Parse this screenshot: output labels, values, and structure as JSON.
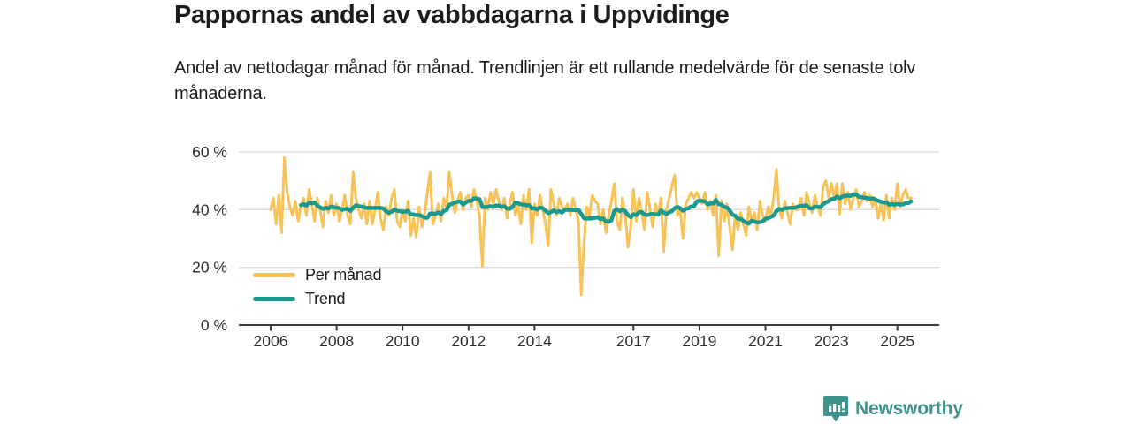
{
  "footer": {
    "brand": "Newsworthy",
    "brand_color": "#3E948C"
  },
  "chart_data": {
    "type": "line",
    "title": "Pappornas andel av vabbdagarna i Uppvidinge",
    "subtitle": "Andel av nettodagar månad för månad. Trendlinjen är ett rullande medelvärde för de senaste tolv månaderna.",
    "x_unit": "month",
    "x_start": "2006-01",
    "x_end": "2025-06",
    "y_unit": "%",
    "ylim": [
      0,
      63
    ],
    "grid": true,
    "grid_color": "#dcdcdc",
    "axis_color": "#3a3a3a",
    "label_color": "#2e2e2e",
    "legend_position": "inside-bottom-left",
    "yticks": [
      {
        "value": 0,
        "label": "0 %"
      },
      {
        "value": 20,
        "label": "20 %"
      },
      {
        "value": 40,
        "label": "40 %"
      },
      {
        "value": 60,
        "label": "60 %"
      }
    ],
    "xticks": [
      {
        "year": 2006,
        "label": "2006"
      },
      {
        "year": 2008,
        "label": "2008"
      },
      {
        "year": 2010,
        "label": "2010"
      },
      {
        "year": 2012,
        "label": "2012"
      },
      {
        "year": 2014,
        "label": "2014"
      },
      {
        "year": 2017,
        "label": "2017"
      },
      {
        "year": 2019,
        "label": "2019"
      },
      {
        "year": 2021,
        "label": "2021"
      },
      {
        "year": 2023,
        "label": "2023"
      },
      {
        "year": 2025,
        "label": "2025"
      }
    ],
    "series": [
      {
        "name": "Per månad",
        "color": "#F9C256",
        "values": [
          40,
          44,
          35,
          45,
          32,
          58,
          46,
          41,
          38,
          43,
          36,
          41,
          44,
          38,
          47,
          42,
          36,
          44,
          40,
          34,
          43,
          39,
          45,
          38,
          42,
          36,
          40,
          45,
          38,
          35,
          53,
          44,
          40,
          37,
          42,
          35,
          43,
          35,
          40,
          46,
          37,
          33,
          41,
          38,
          44,
          47,
          36,
          34,
          40,
          36,
          43,
          31,
          37,
          30.5,
          41,
          34,
          38,
          46,
          53,
          35,
          38,
          42,
          36,
          44,
          40,
          53,
          45,
          39,
          43,
          46,
          40,
          44,
          45,
          41,
          47,
          43,
          38,
          20.5,
          44,
          40,
          46,
          42,
          47,
          43,
          40,
          44,
          37,
          42,
          46,
          38,
          42,
          35,
          45,
          40,
          47,
          28.5,
          42,
          38,
          45,
          40,
          35,
          27.5,
          47,
          42,
          38,
          44,
          41,
          40,
          42,
          38,
          44,
          40,
          36,
          10.5,
          28.5,
          41,
          38,
          45,
          43,
          42,
          35,
          40,
          32,
          38,
          43,
          49,
          36,
          33,
          44,
          38,
          27,
          34,
          47,
          36,
          44,
          39,
          33,
          46,
          40,
          34,
          42,
          38,
          44,
          25.5,
          40,
          44,
          48,
          52,
          38,
          40,
          30,
          42,
          44,
          46,
          44,
          46,
          44,
          42,
          46,
          40,
          43,
          38,
          45,
          24,
          43,
          36,
          42,
          34,
          26,
          38,
          33,
          39,
          35,
          31,
          41,
          36,
          39,
          33,
          43,
          38,
          36,
          41,
          38,
          44,
          54,
          40,
          37,
          43,
          39,
          35,
          42,
          40,
          40,
          44,
          38,
          46,
          42,
          39,
          45,
          41,
          38,
          48,
          50,
          44,
          49,
          44,
          49,
          38.5,
          49,
          42,
          46,
          40,
          44,
          47,
          41,
          43,
          46,
          43,
          45,
          41,
          44,
          37,
          42,
          36.5,
          45,
          37,
          44,
          40,
          49,
          41,
          45,
          47,
          44,
          44
        ]
      },
      {
        "name": "Trend",
        "color": "#1A9A8F",
        "derivation": "rolling mean of the last 12 months of 'Per månad'"
      }
    ]
  }
}
